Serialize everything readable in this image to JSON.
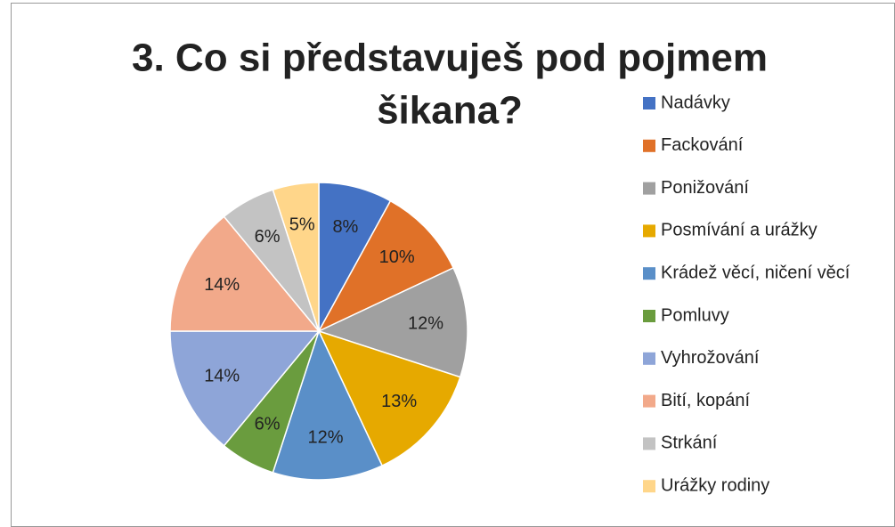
{
  "chart_data": {
    "type": "pie",
    "title_lines": [
      "3. Co si představuješ pod pojmem",
      "šikana?"
    ],
    "categories": [
      "Nadávky",
      "Fackování",
      "Ponižování",
      "Posmívání a urážky",
      "Krádež věcí, ničení věcí",
      "Pomluvy",
      "Vyhrožování",
      "Bití, kopání",
      "Strkání",
      "Urážky rodiny"
    ],
    "values": [
      8,
      10,
      12,
      13,
      12,
      6,
      14,
      14,
      6,
      5
    ],
    "value_labels": [
      "8%",
      "10%",
      "12%",
      "13%",
      "12%",
      "6%",
      "14%",
      "14%",
      "6%",
      "5%"
    ],
    "colors": [
      "#4472c4",
      "#e07128",
      "#a0a0a0",
      "#e6a900",
      "#5a8fc8",
      "#6a9c3e",
      "#8ea5d8",
      "#f2a98a",
      "#c3c3c3",
      "#ffd68a"
    ],
    "legend": "right"
  }
}
